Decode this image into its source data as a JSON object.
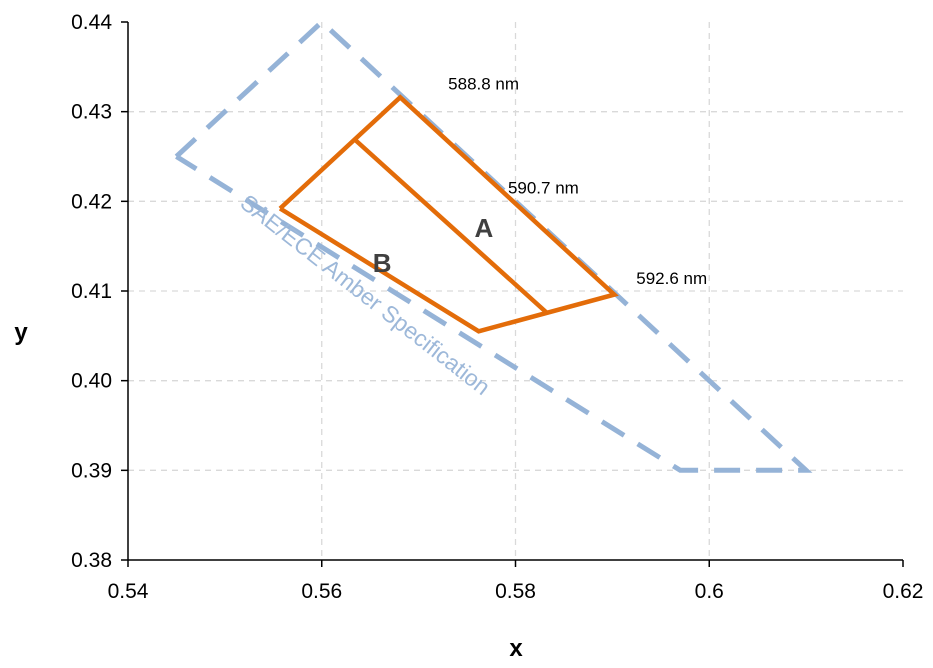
{
  "chart_data": {
    "type": "scatter",
    "title": "",
    "xlabel": "x",
    "ylabel": "y",
    "xlim": [
      0.54,
      0.62
    ],
    "ylim": [
      0.38,
      0.44
    ],
    "x_ticks": [
      0.54,
      0.56,
      0.58,
      0.6,
      0.62
    ],
    "x_tick_labels": [
      "0.54",
      "0.56",
      "0.58",
      "0.6",
      "0.62"
    ],
    "y_ticks": [
      0.38,
      0.39,
      0.4,
      0.41,
      0.42,
      0.43,
      0.44
    ],
    "y_tick_labels": [
      "0.38",
      "0.39",
      "0.40",
      "0.41",
      "0.42",
      "0.43",
      "0.44"
    ],
    "grid": true,
    "series": [
      {
        "name": "SAE/ECE Amber Specification",
        "style": "dashed",
        "color": "#95b3d7",
        "points": [
          [
            0.545,
            0.425
          ],
          [
            0.56,
            0.44
          ],
          [
            0.61,
            0.39
          ],
          [
            0.597,
            0.39
          ],
          [
            0.545,
            0.425
          ]
        ]
      },
      {
        "style": "solid",
        "color": "#e36c09",
        "points": [
          [
            0.5557,
            0.4192
          ],
          [
            0.5681,
            0.4316
          ],
          [
            0.5902,
            0.4096
          ],
          [
            0.5762,
            0.4055
          ],
          [
            0.5557,
            0.4192
          ]
        ]
      },
      {
        "style": "solid",
        "color": "#e36c09",
        "points": [
          [
            0.5634,
            0.4269
          ],
          [
            0.5832,
            0.4076
          ]
        ]
      }
    ],
    "annotations": [
      {
        "text": "588.8 nm",
        "x": 0.5683,
        "y": 0.4318
      },
      {
        "text": "590.7 nm",
        "x": 0.5786,
        "y": 0.4213
      },
      {
        "text": "592.6 nm",
        "x": 0.5904,
        "y": 0.4099
      },
      {
        "text": "A",
        "x": 0.577,
        "y": 0.417
      },
      {
        "text": "B",
        "x": 0.5665,
        "y": 0.4131
      },
      {
        "text": "SAE/ECE Amber Specification",
        "x": 0.564,
        "y": 0.4089
      }
    ]
  }
}
